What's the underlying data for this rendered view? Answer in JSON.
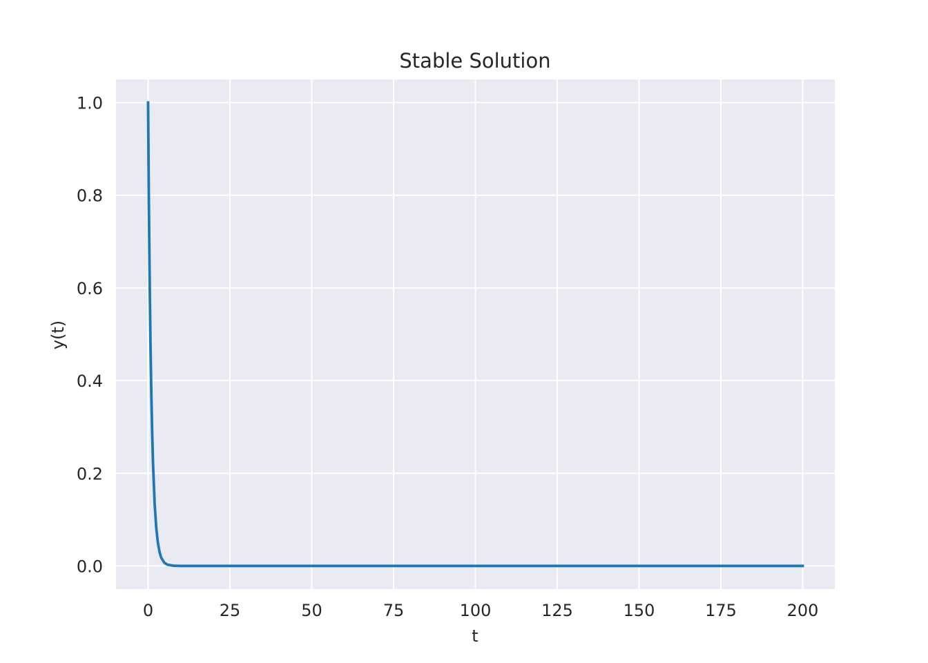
{
  "chart_data": {
    "type": "line",
    "title": "Stable Solution",
    "xlabel": "t",
    "ylabel": "y(t)",
    "xlim": [
      -9.8,
      209.8
    ],
    "ylim": [
      -0.05,
      1.05
    ],
    "xticks": [
      0,
      25,
      50,
      75,
      100,
      125,
      150,
      175,
      200
    ],
    "yticks": [
      0.0,
      0.2,
      0.4,
      0.6,
      0.8,
      1.0
    ],
    "xtick_labels": [
      "0",
      "25",
      "50",
      "75",
      "100",
      "125",
      "150",
      "175",
      "200"
    ],
    "ytick_labels": [
      "0.0",
      "0.2",
      "0.4",
      "0.6",
      "0.8",
      "1.0"
    ],
    "grid": true,
    "background": "#eaeaf2",
    "series": [
      {
        "color": "#1f77b4",
        "x": [
          0,
          0.25,
          0.5,
          0.75,
          1.0,
          1.25,
          1.5,
          2.0,
          2.5,
          3.0,
          3.5,
          4.0,
          5.0,
          6.0,
          8.0,
          10,
          20,
          50,
          100,
          150,
          200
        ],
        "y": [
          1.0,
          0.779,
          0.607,
          0.472,
          0.368,
          0.287,
          0.223,
          0.135,
          0.082,
          0.05,
          0.03,
          0.018,
          0.0067,
          0.0025,
          0.0003,
          5e-05,
          0.0,
          0.0,
          0.0,
          0.0,
          0.0
        ]
      }
    ]
  }
}
